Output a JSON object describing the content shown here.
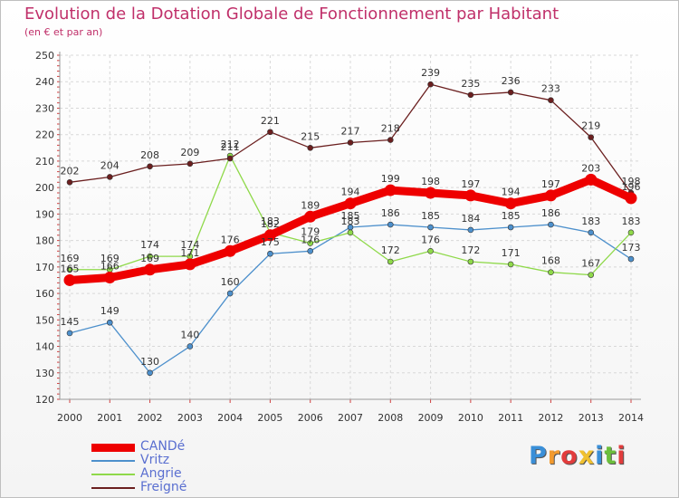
{
  "title": "Evolution de la Dotation Globale de Fonctionnement par Habitant",
  "subtitle": "(en € et par an)",
  "logo": {
    "text": "Proxiti",
    "letters": [
      "P",
      "r",
      "o",
      "x",
      "i",
      "t",
      "i"
    ],
    "colors": [
      "#3a8fd8",
      "#f29a2e",
      "#e23c3c",
      "#f0c02f",
      "#3a8fd8",
      "#6cbf3c",
      "#e23c3c"
    ]
  },
  "chart_data": {
    "type": "line",
    "title": "Evolution de la Dotation Globale de Fonctionnement par Habitant",
    "subtitle": "(en € et par an)",
    "x": [
      2000,
      2001,
      2002,
      2003,
      2004,
      2005,
      2006,
      2007,
      2008,
      2009,
      2010,
      2011,
      2012,
      2013,
      2014
    ],
    "x_tick_labels": [
      "2000",
      "2001",
      "2002",
      "2003",
      "2004",
      "2005",
      "2006",
      "2007",
      "2008",
      "2009",
      "2010",
      "2011",
      "2012",
      "2013",
      "2014"
    ],
    "ylim": [
      120,
      250
    ],
    "y_ticks": [
      120,
      130,
      140,
      150,
      160,
      170,
      180,
      190,
      200,
      210,
      220,
      230,
      240,
      250
    ],
    "grid": "horizontal and vertical dashed",
    "legend": "bottom-left",
    "series": [
      {
        "name": "CANDé",
        "color": "#ee0000",
        "values": [
          165,
          166,
          169,
          171,
          176,
          182,
          189,
          194,
          199,
          198,
          197,
          194,
          197,
          203,
          196
        ]
      },
      {
        "name": "Vritz",
        "color": "#4d90cc",
        "values": [
          145,
          149,
          130,
          140,
          160,
          175,
          176,
          185,
          186,
          185,
          184,
          185,
          186,
          183,
          173
        ]
      },
      {
        "name": "Angrie",
        "color": "#8fd94a",
        "values": [
          169,
          169,
          174,
          174,
          212,
          183,
          179,
          183,
          172,
          176,
          172,
          171,
          168,
          167,
          183
        ]
      },
      {
        "name": "Freigné",
        "color": "#6b1f1f",
        "values": [
          202,
          204,
          208,
          209,
          211,
          221,
          215,
          217,
          218,
          239,
          235,
          236,
          233,
          219,
          198
        ]
      }
    ]
  }
}
